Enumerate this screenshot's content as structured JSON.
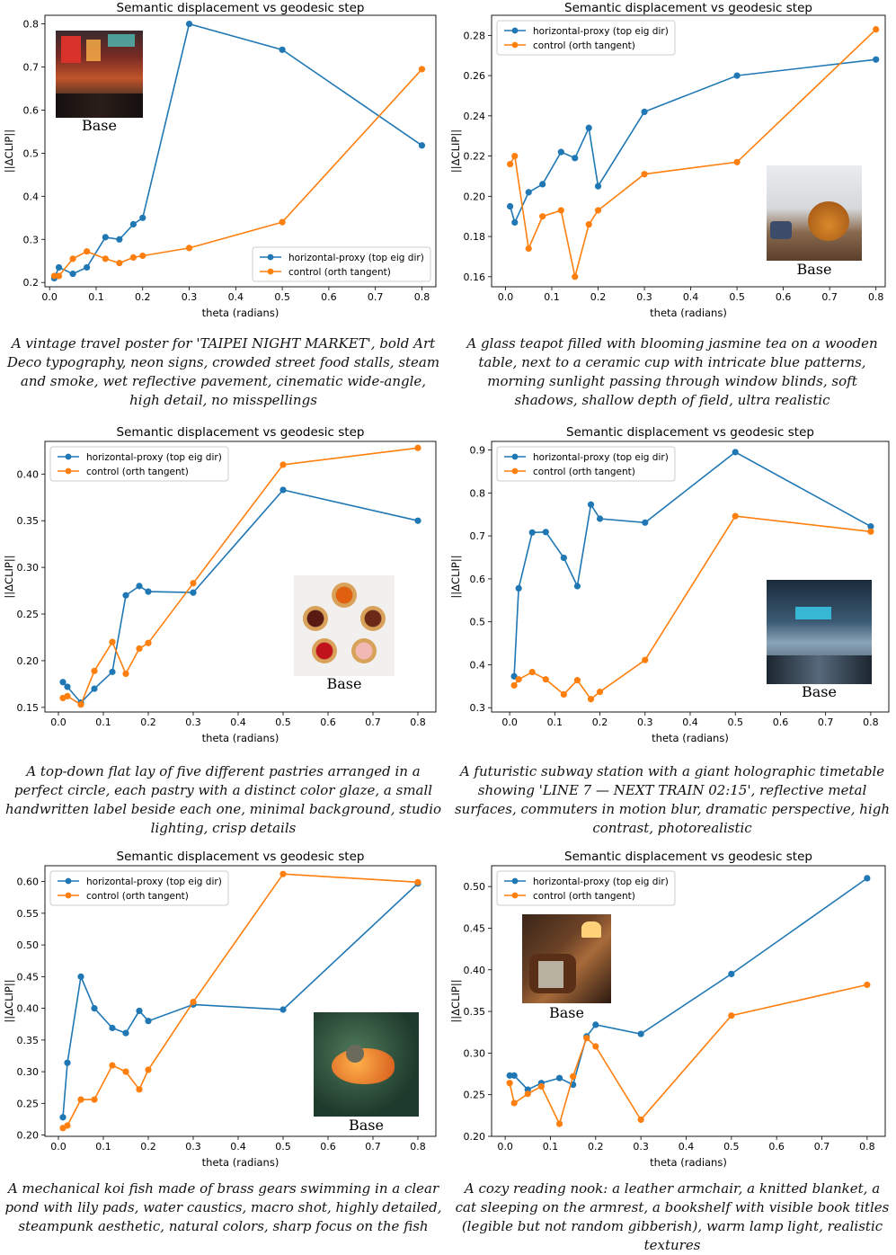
{
  "chart_data": [
    {
      "type": "line",
      "title": "Semantic displacement vs geodesic step",
      "xlabel": "theta (radians)",
      "ylabel": "||ΔCLIP||",
      "xlim": [
        -0.01,
        0.83
      ],
      "ylim": [
        0.19,
        0.82
      ],
      "xticks": [
        0.0,
        0.1,
        0.2,
        0.3,
        0.4,
        0.5,
        0.6,
        0.7,
        0.8
      ],
      "yticks": [
        0.2,
        0.3,
        0.4,
        0.5,
        0.6,
        0.7,
        0.8
      ],
      "grid": false,
      "legend": "bottom-right",
      "x": [
        0.01,
        0.02,
        0.05,
        0.08,
        0.12,
        0.15,
        0.18,
        0.2,
        0.3,
        0.5,
        0.8
      ],
      "series": [
        {
          "name": "horizontal-proxy (top eig dir)",
          "color": "#1f77b4",
          "values": [
            0.21,
            0.235,
            0.22,
            0.235,
            0.305,
            0.3,
            0.335,
            0.35,
            0.8,
            0.74,
            0.518
          ]
        },
        {
          "name": "control (orth tangent)",
          "color": "#ff7f0e",
          "values": [
            0.215,
            0.215,
            0.255,
            0.272,
            0.255,
            0.245,
            0.258,
            0.262,
            0.28,
            0.34,
            0.695
          ]
        }
      ],
      "thumbnail": {
        "label": "Base",
        "icon": "night-market-image"
      },
      "caption": "A vintage travel poster for 'TAIPEI NIGHT MARKET', bold Art Deco typography, neon signs, crowded street food stalls, steam and smoke, wet reflective pavement, cinematic wide-angle, high detail, no misspellings"
    },
    {
      "type": "line",
      "title": "Semantic displacement vs geodesic step",
      "xlabel": "theta (radians)",
      "ylabel": "||ΔCLIP||",
      "xlim": [
        -0.03,
        0.82
      ],
      "ylim": [
        0.155,
        0.29
      ],
      "xticks": [
        0.0,
        0.1,
        0.2,
        0.3,
        0.4,
        0.5,
        0.6,
        0.7,
        0.8
      ],
      "yticks": [
        0.16,
        0.18,
        0.2,
        0.22,
        0.24,
        0.26,
        0.28
      ],
      "grid": false,
      "legend": "top-left",
      "x": [
        0.01,
        0.02,
        0.05,
        0.08,
        0.12,
        0.15,
        0.18,
        0.2,
        0.3,
        0.5,
        0.8
      ],
      "series": [
        {
          "name": "horizontal-proxy (top eig dir)",
          "color": "#1f77b4",
          "values": [
            0.195,
            0.187,
            0.202,
            0.206,
            0.222,
            0.219,
            0.234,
            0.205,
            0.242,
            0.26,
            0.268
          ]
        },
        {
          "name": "control (orth tangent)",
          "color": "#ff7f0e",
          "values": [
            0.216,
            0.22,
            0.174,
            0.19,
            0.193,
            0.16,
            0.186,
            0.193,
            0.211,
            0.217,
            0.283
          ]
        }
      ],
      "thumbnail": {
        "label": "Base",
        "icon": "teapot-image"
      },
      "caption": "A glass teapot filled with blooming jasmine tea on a wooden table, next to a ceramic cup with intricate blue patterns, morning sunlight passing through window blinds, soft shadows, shallow depth of field, ultra realistic"
    },
    {
      "type": "line",
      "title": "Semantic displacement vs geodesic step",
      "xlabel": "theta (radians)",
      "ylabel": "||ΔCLIP||",
      "xlim": [
        -0.03,
        0.84
      ],
      "ylim": [
        0.145,
        0.435
      ],
      "xticks": [
        0.0,
        0.1,
        0.2,
        0.3,
        0.4,
        0.5,
        0.6,
        0.7,
        0.8
      ],
      "yticks": [
        0.15,
        0.2,
        0.25,
        0.3,
        0.35,
        0.4
      ],
      "grid": false,
      "legend": "top-left",
      "x": [
        0.01,
        0.02,
        0.05,
        0.08,
        0.12,
        0.15,
        0.18,
        0.2,
        0.3,
        0.5,
        0.8
      ],
      "series": [
        {
          "name": "horizontal-proxy (top eig dir)",
          "color": "#1f77b4",
          "values": [
            0.177,
            0.172,
            0.155,
            0.17,
            0.188,
            0.27,
            0.28,
            0.274,
            0.273,
            0.383,
            0.35
          ]
        },
        {
          "name": "control (orth tangent)",
          "color": "#ff7f0e",
          "values": [
            0.16,
            0.162,
            0.153,
            0.189,
            0.22,
            0.186,
            0.213,
            0.219,
            0.283,
            0.41,
            0.428
          ]
        }
      ],
      "thumbnail": {
        "label": "Base",
        "icon": "pastries-image"
      },
      "caption": "A top-down flat lay of five different pastries arranged in a perfect circle, each pastry with a distinct color glaze, a small handwritten label beside each one, minimal background, studio lighting, crisp details"
    },
    {
      "type": "line",
      "title": "Semantic displacement vs geodesic step",
      "xlabel": "theta (radians)",
      "ylabel": "||ΔCLIP||",
      "xlim": [
        -0.04,
        0.84
      ],
      "ylim": [
        0.29,
        0.92
      ],
      "xticks": [
        0.0,
        0.1,
        0.2,
        0.3,
        0.4,
        0.5,
        0.6,
        0.7,
        0.8
      ],
      "yticks": [
        0.3,
        0.4,
        0.5,
        0.6,
        0.7,
        0.8,
        0.9
      ],
      "grid": false,
      "legend": "top-left",
      "x": [
        0.01,
        0.02,
        0.05,
        0.08,
        0.12,
        0.15,
        0.18,
        0.2,
        0.3,
        0.5,
        0.8
      ],
      "series": [
        {
          "name": "horizontal-proxy (top eig dir)",
          "color": "#1f77b4",
          "values": [
            0.373,
            0.578,
            0.708,
            0.709,
            0.649,
            0.583,
            0.773,
            0.74,
            0.731,
            0.895,
            0.722
          ]
        },
        {
          "name": "control (orth tangent)",
          "color": "#ff7f0e",
          "values": [
            0.352,
            0.366,
            0.383,
            0.366,
            0.331,
            0.364,
            0.32,
            0.337,
            0.411,
            0.746,
            0.71
          ]
        }
      ],
      "thumbnail": {
        "label": "Base",
        "icon": "subway-image"
      },
      "caption": "A futuristic subway station with a giant holographic timetable showing 'LINE 7 — NEXT TRAIN 02:15', reflective metal surfaces, commuters in motion blur, dramatic perspective, high contrast, photorealistic"
    },
    {
      "type": "line",
      "title": "Semantic displacement vs geodesic step",
      "xlabel": "theta (radians)",
      "ylabel": "||ΔCLIP||",
      "xlim": [
        -0.03,
        0.84
      ],
      "ylim": [
        0.198,
        0.625
      ],
      "xticks": [
        0.0,
        0.1,
        0.2,
        0.3,
        0.4,
        0.5,
        0.6,
        0.7,
        0.8
      ],
      "yticks": [
        0.2,
        0.25,
        0.3,
        0.35,
        0.4,
        0.45,
        0.5,
        0.55,
        0.6
      ],
      "grid": false,
      "legend": "top-left",
      "x": [
        0.01,
        0.02,
        0.05,
        0.08,
        0.12,
        0.15,
        0.18,
        0.2,
        0.3,
        0.5,
        0.8
      ],
      "series": [
        {
          "name": "horizontal-proxy (top eig dir)",
          "color": "#1f77b4",
          "values": [
            0.228,
            0.314,
            0.45,
            0.4,
            0.369,
            0.361,
            0.396,
            0.38,
            0.406,
            0.398,
            0.597
          ]
        },
        {
          "name": "control (orth tangent)",
          "color": "#ff7f0e",
          "values": [
            0.211,
            0.215,
            0.256,
            0.256,
            0.31,
            0.3,
            0.272,
            0.303,
            0.41,
            0.612,
            0.599
          ]
        }
      ],
      "thumbnail": {
        "label": "Base",
        "icon": "koi-fish-image"
      },
      "caption": "A mechanical koi fish made of brass gears swimming in a clear pond with lily pads, water caustics, macro shot, highly detailed, steampunk aesthetic, natural colors, sharp focus on the fish"
    },
    {
      "type": "line",
      "title": "Semantic displacement vs geodesic step",
      "xlabel": "theta (radians)",
      "ylabel": "||ΔCLIP||",
      "xlim": [
        -0.03,
        0.84
      ],
      "ylim": [
        0.2,
        0.525
      ],
      "xticks": [
        0.0,
        0.1,
        0.2,
        0.3,
        0.4,
        0.5,
        0.6,
        0.7,
        0.8
      ],
      "yticks": [
        0.2,
        0.25,
        0.3,
        0.35,
        0.4,
        0.45,
        0.5
      ],
      "grid": false,
      "legend": "top-left",
      "x": [
        0.01,
        0.02,
        0.05,
        0.08,
        0.12,
        0.15,
        0.18,
        0.2,
        0.3,
        0.5,
        0.8
      ],
      "series": [
        {
          "name": "horizontal-proxy (top eig dir)",
          "color": "#1f77b4",
          "values": [
            0.273,
            0.273,
            0.256,
            0.264,
            0.27,
            0.262,
            0.32,
            0.334,
            0.323,
            0.395,
            0.51
          ]
        },
        {
          "name": "control (orth tangent)",
          "color": "#ff7f0e",
          "values": [
            0.264,
            0.24,
            0.251,
            0.26,
            0.215,
            0.272,
            0.318,
            0.308,
            0.22,
            0.345,
            0.382
          ]
        }
      ],
      "thumbnail": {
        "label": "Base",
        "icon": "reading-nook-image"
      },
      "caption": "A cozy reading nook: a leather armchair, a knitted blanket, a cat sleeping on the armrest, a bookshelf with visible book titles (legible but not random gibberish), warm lamp light, realistic textures"
    }
  ]
}
